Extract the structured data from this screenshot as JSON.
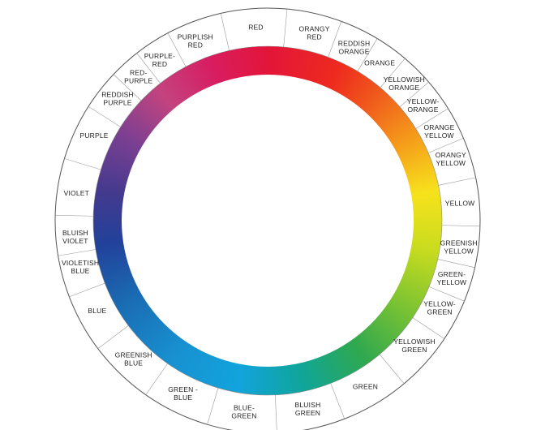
{
  "wheel": {
    "labels": [
      [
        "RED"
      ],
      [
        "ORANGY",
        "RED"
      ],
      [
        "REDDISH",
        "ORANGE"
      ],
      [
        "ORANGE"
      ],
      [
        "YELLOWISH",
        "ORANGE"
      ],
      [
        "YELLOW-",
        "ORANGE"
      ],
      [
        "ORANGE",
        "YELLOW"
      ],
      [
        "ORANGY",
        "YELLOW"
      ],
      [
        "YELLOW"
      ],
      [
        "GREENISH",
        "YELLOW"
      ],
      [
        "GREEN-",
        "YELLOW"
      ],
      [
        "YELLOW-",
        "GREEN"
      ],
      [
        "YELLOWISH",
        "GREEN"
      ],
      [
        "GREEN"
      ],
      [
        "BLUISH",
        "GREEN"
      ],
      [
        "BLUE-",
        "GREEN"
      ],
      [
        "GREEN -",
        "BLUE"
      ],
      [
        "GREENISH",
        "BLUE"
      ],
      [
        "BLUE"
      ],
      [
        "VIOLETISH",
        "BLUE"
      ],
      [
        "BLUISH",
        "VIOLET"
      ],
      [
        "VIOLET"
      ],
      [
        "PURPLE"
      ],
      [
        "REDDISH",
        "PURPLE"
      ],
      [
        "RED-",
        "PURPLE"
      ],
      [
        "PURPLE-",
        "RED"
      ],
      [
        "PURPLISH",
        "RED"
      ]
    ]
  }
}
